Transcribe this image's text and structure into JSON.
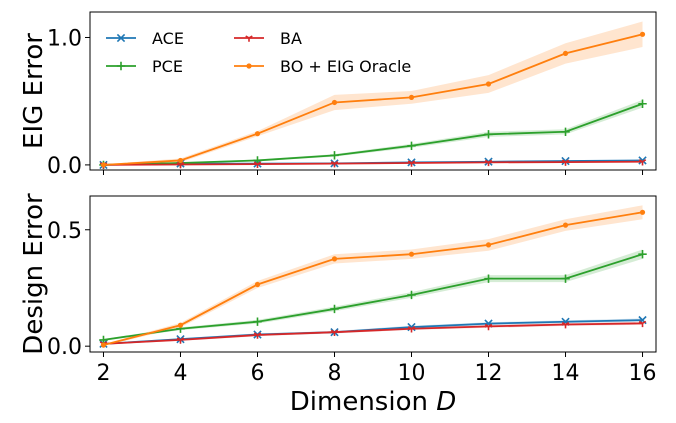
{
  "chart_data": [
    {
      "type": "line",
      "ylabel": "EIG Error",
      "xlabel": "",
      "x": [
        2,
        4,
        6,
        8,
        10,
        12,
        14,
        16
      ],
      "xlim": [
        1.65,
        16.35
      ],
      "ylim": [
        -0.04,
        1.2
      ],
      "yticks": [
        0.0,
        1.0
      ],
      "ytick_labels": [
        "0.0",
        "1.0"
      ],
      "grid": false,
      "legend_position": "top-left",
      "series": [
        {
          "name": "ACE",
          "color": "#1f77b4",
          "marker": "x",
          "values": [
            0.0,
            0.01,
            0.01,
            0.012,
            0.02,
            0.025,
            0.03,
            0.035
          ],
          "band": [
            0.003,
            0.003,
            0.003,
            0.003,
            0.004,
            0.004,
            0.005,
            0.005
          ]
        },
        {
          "name": "PCE",
          "color": "#2ca02c",
          "marker": "+",
          "values": [
            0.0,
            0.015,
            0.035,
            0.075,
            0.15,
            0.24,
            0.26,
            0.48
          ],
          "band": [
            0.003,
            0.005,
            0.007,
            0.01,
            0.015,
            0.02,
            0.02,
            0.03
          ]
        },
        {
          "name": "BA",
          "color": "#d62728",
          "marker": "tri",
          "values": [
            0.0,
            0.003,
            0.006,
            0.01,
            0.015,
            0.02,
            0.022,
            0.025
          ],
          "band": [
            0.002,
            0.002,
            0.002,
            0.003,
            0.003,
            0.004,
            0.004,
            0.004
          ]
        },
        {
          "name": "BO + EIG Oracle",
          "color": "#ff7f0e",
          "marker": "dot",
          "values": [
            0.0,
            0.035,
            0.245,
            0.49,
            0.53,
            0.635,
            0.875,
            1.025
          ],
          "band": [
            0.005,
            0.015,
            0.02,
            0.06,
            0.05,
            0.07,
            0.08,
            0.1
          ]
        }
      ]
    },
    {
      "type": "line",
      "ylabel": "Design Error",
      "xlabel": "Dimension ",
      "xlabel_symbol": "D",
      "x": [
        2,
        4,
        6,
        8,
        10,
        12,
        14,
        16
      ],
      "xlim": [
        1.65,
        16.35
      ],
      "ylim": [
        -0.025,
        0.645
      ],
      "xticks": [
        2,
        4,
        6,
        8,
        10,
        12,
        14,
        16
      ],
      "xtick_labels": [
        "2",
        "4",
        "6",
        "8",
        "10",
        "12",
        "14",
        "16"
      ],
      "yticks": [
        0.0,
        0.5
      ],
      "ytick_labels": [
        "0.0",
        "0.5"
      ],
      "grid": false,
      "series": [
        {
          "name": "ACE",
          "color": "#1f77b4",
          "marker": "x",
          "values": [
            0.01,
            0.03,
            0.05,
            0.06,
            0.082,
            0.097,
            0.105,
            0.112
          ],
          "band": [
            0.003,
            0.004,
            0.005,
            0.005,
            0.006,
            0.006,
            0.006,
            0.007
          ]
        },
        {
          "name": "PCE",
          "color": "#2ca02c",
          "marker": "+",
          "values": [
            0.027,
            0.075,
            0.105,
            0.16,
            0.22,
            0.29,
            0.29,
            0.395
          ],
          "band": [
            0.004,
            0.006,
            0.008,
            0.01,
            0.012,
            0.015,
            0.015,
            0.02
          ]
        },
        {
          "name": "BA",
          "color": "#d62728",
          "marker": "tri",
          "values": [
            0.01,
            0.027,
            0.048,
            0.06,
            0.075,
            0.085,
            0.093,
            0.098
          ],
          "band": [
            0.003,
            0.004,
            0.005,
            0.005,
            0.005,
            0.006,
            0.006,
            0.006
          ]
        },
        {
          "name": "BO + EIG Oracle",
          "color": "#ff7f0e",
          "marker": "dot",
          "values": [
            0.005,
            0.09,
            0.265,
            0.375,
            0.395,
            0.435,
            0.52,
            0.575
          ],
          "band": [
            0.004,
            0.01,
            0.015,
            0.02,
            0.02,
            0.025,
            0.025,
            0.03
          ]
        }
      ]
    }
  ]
}
